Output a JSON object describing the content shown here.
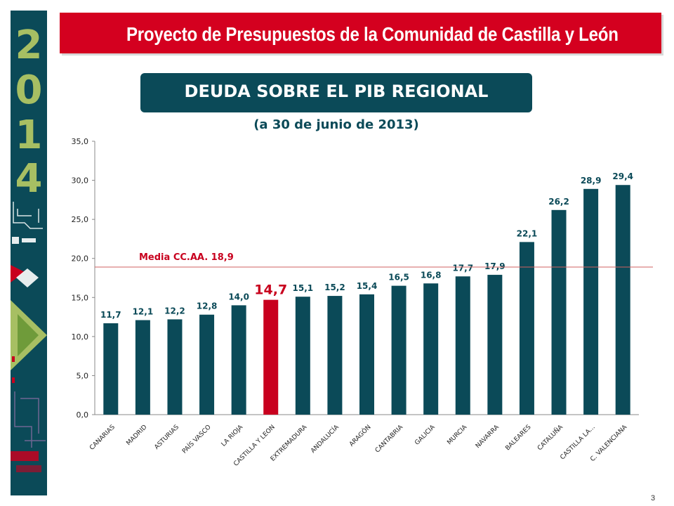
{
  "header": {
    "banner_title": "Proyecto de Presupuestos de la Comunidad de Castilla y León",
    "year_digits": [
      "2",
      "0",
      "1",
      "4"
    ],
    "page_number": "3"
  },
  "chart_title": "DEUDA SOBRE EL PIB REGIONAL",
  "chart_subtitle": "(a 30 de junio de 2013)",
  "colors": {
    "sidebar": "#0b4a58",
    "banner": "#d4001f",
    "bar": "#0b4a58",
    "highlight_bar": "#c8001e",
    "value_label": "#0b4a58",
    "mean_line": "#d06060",
    "mean_label": "#c8001e",
    "year_digits": "#a7bf63"
  },
  "chart_data": {
    "type": "bar",
    "categories": [
      "CANARIAS",
      "MADRID",
      "ASTURIAS",
      "PAÍS VASCO",
      "LA RIOJA",
      "CASTILLA Y LEON",
      "EXTREMADURA",
      "ANDALUCÍA",
      "ARAGÓN",
      "CANTABRIA",
      "GALICIA",
      "MURCIA",
      "NAVARRA",
      "BALEARES",
      "CATALUÑA",
      "CASTILLA LA...",
      "C. VALENCIANA"
    ],
    "values": [
      11.7,
      12.1,
      12.2,
      12.8,
      14.0,
      14.7,
      15.1,
      15.2,
      15.4,
      16.5,
      16.8,
      17.7,
      17.9,
      22.1,
      26.2,
      28.9,
      29.4
    ],
    "value_labels": [
      "11,7",
      "12,1",
      "12,2",
      "12,8",
      "14,0",
      "14,7",
      "15,1",
      "15,2",
      "15,4",
      "16,5",
      "16,8",
      "17,7",
      "17,9",
      "22,1",
      "26,2",
      "28,9",
      "29,4"
    ],
    "highlight_category": "CASTILLA Y LEON",
    "ylim": [
      0,
      35
    ],
    "yticks": [
      0,
      5,
      10,
      15,
      20,
      25,
      30,
      35
    ],
    "ytick_labels": [
      "0,0",
      "5,0",
      "10,0",
      "15,0",
      "20,0",
      "25,0",
      "30,0",
      "35,0"
    ],
    "mean_line": {
      "value": 18.9,
      "label": "Media CC.AA. 18,9"
    },
    "grid": false,
    "legend": "none"
  }
}
